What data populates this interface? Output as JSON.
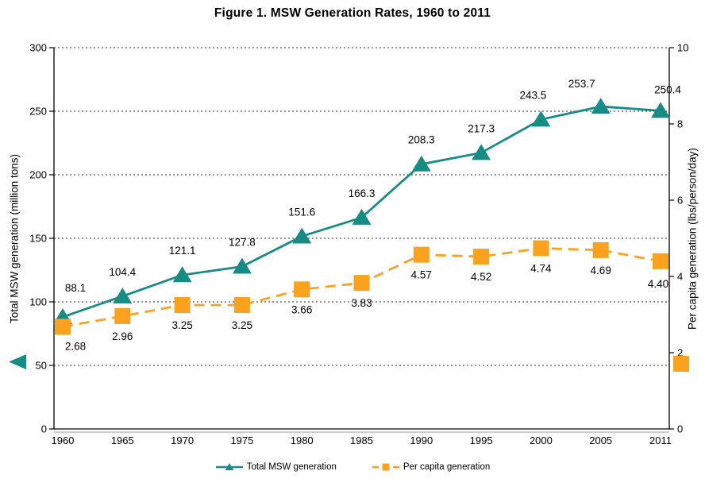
{
  "chart_data": {
    "type": "line",
    "title": "Figure 1. MSW Generation Rates, 1960 to 2011",
    "categories": [
      "1960",
      "1965",
      "1970",
      "1975",
      "1980",
      "1985",
      "1990",
      "1995",
      "2000",
      "2005",
      "2011"
    ],
    "series": [
      {
        "name": "Total MSW generation",
        "axis": "left",
        "color": "#178C85",
        "marker": "triangle",
        "line_style": "solid",
        "values": [
          88.1,
          104.4,
          121.1,
          127.8,
          151.6,
          166.3,
          208.3,
          217.3,
          243.5,
          253.7,
          250.4
        ],
        "labels": [
          "88.1",
          "104.4",
          "121.1",
          "127.8",
          "151.6",
          "166.3",
          "208.3",
          "217.3",
          "243.5",
          "253.7",
          "250.4"
        ]
      },
      {
        "name": "Per capita generation",
        "axis": "right",
        "color": "#FAA21E",
        "marker": "square",
        "line_style": "dashed",
        "values": [
          2.68,
          2.96,
          3.25,
          3.25,
          3.66,
          3.83,
          4.57,
          4.52,
          4.74,
          4.69,
          4.4
        ],
        "labels": [
          "2.68",
          "2.96",
          "3.25",
          "3.25",
          "3.66",
          "3.83",
          "4.57",
          "4.52",
          "4.74",
          "4.69",
          "4.40"
        ]
      }
    ],
    "left_axis": {
      "label": "Total MSW generation (million tons)",
      "min": 0,
      "max": 300,
      "ticks": [
        0,
        50,
        100,
        150,
        200,
        250,
        300
      ]
    },
    "right_axis": {
      "label": "Per capita generation (lbs/person/day)",
      "min": 0,
      "max": 10,
      "ticks": [
        0,
        2,
        4,
        6,
        8,
        10
      ]
    },
    "grid": "horizontal-dashed",
    "legend_position": "bottom"
  }
}
